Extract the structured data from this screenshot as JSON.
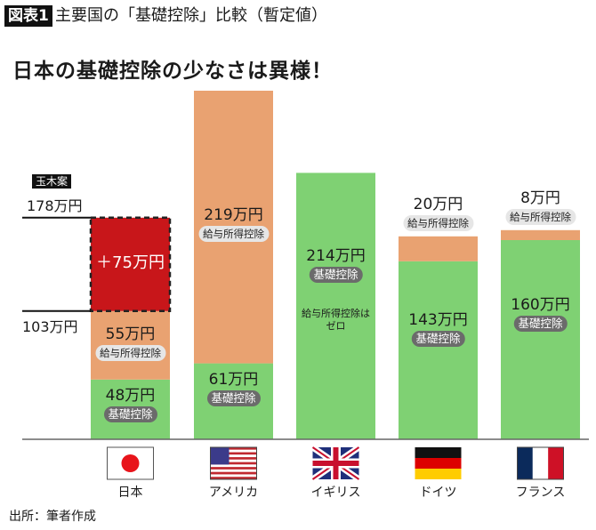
{
  "figure_badge": "図表1",
  "figure_title": "主要国の「基礎控除」比較（暫定値）",
  "headline": "日本の基礎控除の少なさは異様！",
  "source": "出所：筆者作成",
  "colors": {
    "basic": "#7fd173",
    "employment": "#e9a271",
    "proposal": "#c8161a"
  },
  "chart_data": {
    "type": "bar",
    "stacked": true,
    "unit": "万円",
    "categories": [
      "日本",
      "アメリカ",
      "イギリス",
      "ドイツ",
      "フランス"
    ],
    "series": [
      {
        "name": "基礎控除",
        "values": [
          48,
          61,
          214,
          143,
          160
        ],
        "labels": [
          "48万円",
          "61万円",
          "214万円",
          "143万円",
          "160万円"
        ]
      },
      {
        "name": "給与所得控除",
        "values": [
          55,
          219,
          0,
          20,
          8
        ],
        "labels": [
          "55万円",
          "219万円",
          "",
          "20万円",
          "8万円"
        ]
      }
    ],
    "uk_note": "給与所得控除は\nゼロ",
    "proposal": {
      "tag": "玉木案",
      "value": 75,
      "label": "＋75万円",
      "from_label": "103万円",
      "to_label": "178万円",
      "from": 103,
      "to": 178
    },
    "flags": [
      "japan-flag",
      "usa-flag",
      "uk-flag",
      "germany-flag",
      "france-flag"
    ],
    "ylim": [
      0,
      290
    ]
  }
}
